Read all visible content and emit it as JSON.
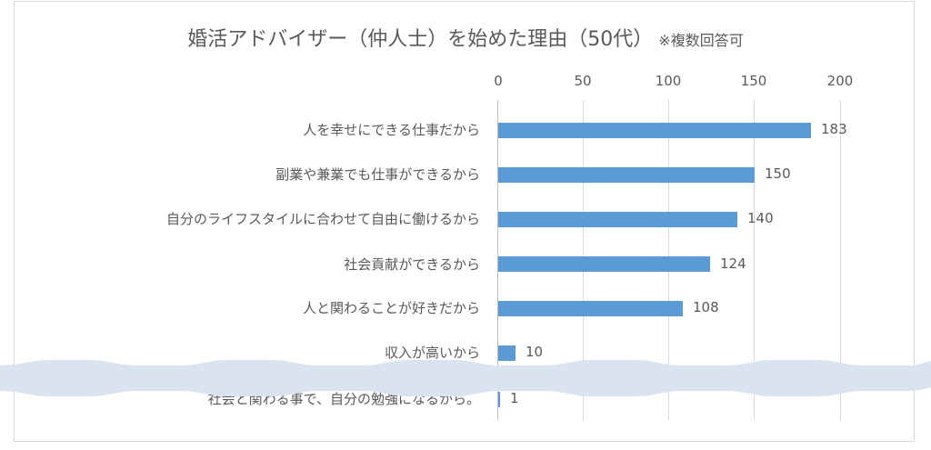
{
  "chart_data": {
    "type": "bar",
    "orientation": "horizontal",
    "title": "婚活アドバイザー（仲人士）を始めた理由（50代）",
    "subtitle": "※複数回答可",
    "xlabel": "",
    "ylabel": "",
    "xlim": [
      0,
      200
    ],
    "ticks": [
      "0",
      "50",
      "100",
      "150",
      "200"
    ],
    "grid": true,
    "legend": "none",
    "bar_color": "#5b9bd5",
    "categories": [
      "人を幸せにできる仕事だから",
      "副業や兼業でも仕事ができるから",
      "自分のライフスタイルに合わせて自由に働けるから",
      "社会貢献ができるから",
      "人と関わることが好きだから",
      "収入が高いから",
      "社会と関わる事で、自分の勉強になるから。"
    ],
    "values": [
      183,
      150,
      140,
      124,
      108,
      10,
      1
    ],
    "value_labels": [
      "183",
      "150",
      "140",
      "124",
      "108",
      "10",
      "1"
    ],
    "annotations": [
      "wavy break band between '収入が高いから' and the last item"
    ]
  },
  "colors": {
    "bar": "#5b9bd5",
    "grid": "#d9d9d9",
    "text": "#595959",
    "break_band": "#dae3f0",
    "border": "#d9d9d9"
  }
}
